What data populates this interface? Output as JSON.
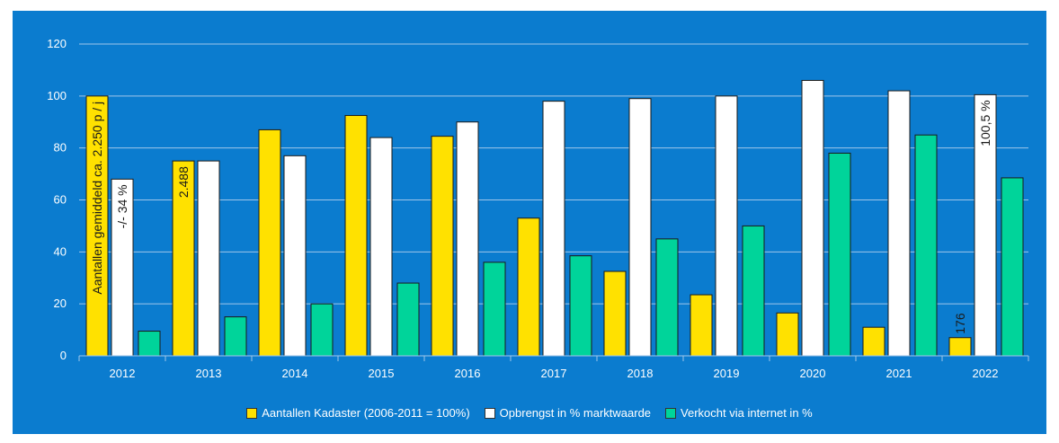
{
  "chart_data": {
    "type": "bar",
    "categories": [
      "2012",
      "2013",
      "2014",
      "2015",
      "2016",
      "2017",
      "2018",
      "2019",
      "2020",
      "2021",
      "2022"
    ],
    "series": [
      {
        "name": "Aantallen Kadaster (2006-2011 = 100%)",
        "color": "#ffe100",
        "values": [
          100,
          75,
          87,
          92.5,
          84.5,
          53,
          32.5,
          23.5,
          16.5,
          11,
          7
        ]
      },
      {
        "name": "Opbrengst in % marktwaarde",
        "color": "#ffffff",
        "values": [
          68,
          75,
          77,
          84,
          90,
          98,
          99,
          100,
          106,
          102,
          100.5
        ]
      },
      {
        "name": "Verkocht via internet in %",
        "color": "#00d49a",
        "values": [
          9.5,
          15,
          20,
          28,
          36,
          38.5,
          45,
          50,
          78,
          85,
          68.5
        ]
      }
    ],
    "ylim": [
      0,
      120
    ],
    "yticks": [
      "0",
      "20",
      "40",
      "60",
      "80",
      "100",
      "120"
    ],
    "grid": true,
    "legend_position": "bottom",
    "annotations": [
      {
        "text": "Aantallen gemiddeld  ca. 2.250 p / j",
        "series": 0,
        "category": 0
      },
      {
        "text": "-/- 34 %",
        "series": 1,
        "category": 0
      },
      {
        "text": "2.488",
        "series": 0,
        "category": 1
      },
      {
        "text": "100,5 %",
        "series": 1,
        "category": 10
      },
      {
        "text": "176",
        "series": 0,
        "category": 10
      }
    ],
    "colors": {
      "background": "#0b7ccf",
      "grid": "#9fc6ea",
      "text": "#ffffff"
    }
  }
}
